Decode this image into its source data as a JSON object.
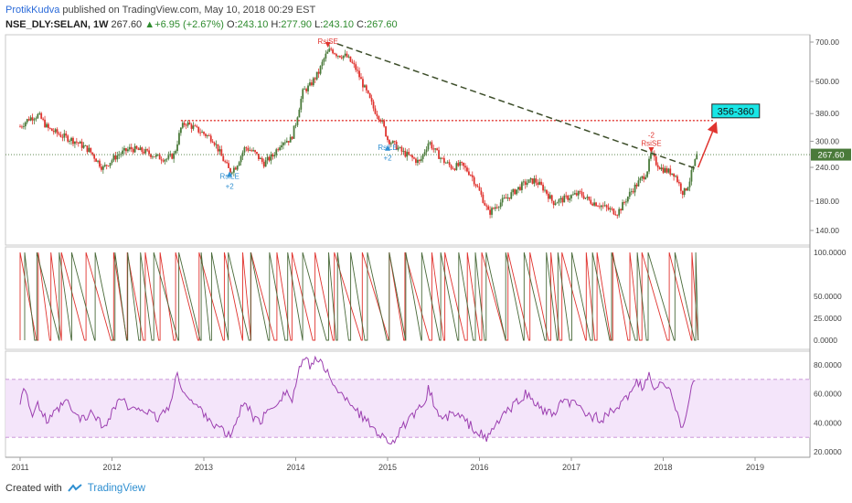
{
  "header": {
    "author": "ProtikKudva",
    "published": "published on TradingView.com, May 10, 2018 00:29 EST",
    "symbol": "NSE_DLY:SELAN, 1W",
    "price": "267.60",
    "change": "+6.95 (+2.67%)",
    "o_label": "O:",
    "o": "243.10",
    "h_label": "H:",
    "h": "277.90",
    "l_label": "L:",
    "l": "243.10",
    "c_label": "C:",
    "c": "267.60"
  },
  "footer": {
    "created": "Created with",
    "brand": "TradingView"
  },
  "colors": {
    "up": "#4a7a3a",
    "down": "#e0342f",
    "trend": "#3d4e2a",
    "level": "#e0342f",
    "rsi": "#9c3fb0",
    "rsi_band": "#f0ddf8",
    "target": "#18e6e6"
  },
  "chart_data": [
    {
      "type": "candlestick",
      "panel": "price",
      "scale": "log",
      "x_ticks": [
        "2011",
        "2012",
        "2013",
        "2014",
        "2015",
        "2016",
        "2017",
        "2018",
        "2019"
      ],
      "y_ticks": [
        "700.00",
        "500.00",
        "380.00",
        "300.00",
        "240.00",
        "180.00",
        "140.00"
      ],
      "last_price_label": "267.60",
      "target_label": "356-360",
      "annotations": [
        {
          "text": "RsiSE",
          "year": 2014.35,
          "price": 690
        },
        {
          "text": "RsiLE",
          "year": 2013.28,
          "price": 218
        },
        {
          "text": "+2",
          "year": 2013.28,
          "price": 200
        },
        {
          "text": "RsiLE",
          "year": 2015.0,
          "price": 278
        },
        {
          "text": "+2",
          "year": 2015.0,
          "price": 255
        },
        {
          "text": "-2",
          "year": 2017.87,
          "price": 310
        },
        {
          "text": "RsiSE",
          "year": 2017.87,
          "price": 288
        }
      ],
      "resistance_level": 358,
      "trendline": {
        "start": {
          "year": 2014.45,
          "price": 690
        },
        "end": {
          "year": 2018.38,
          "price": 236
        }
      },
      "projection": {
        "start": {
          "year": 2018.38,
          "price": 240
        },
        "end": {
          "year": 2018.57,
          "price": 358
        }
      },
      "close_path": [
        [
          2011.0,
          340
        ],
        [
          2011.1,
          365
        ],
        [
          2011.2,
          375
        ],
        [
          2011.3,
          335
        ],
        [
          2011.45,
          315
        ],
        [
          2011.6,
          300
        ],
        [
          2011.75,
          278
        ],
        [
          2011.9,
          238
        ],
        [
          2012.05,
          265
        ],
        [
          2012.2,
          282
        ],
        [
          2012.35,
          275
        ],
        [
          2012.5,
          262
        ],
        [
          2012.6,
          258
        ],
        [
          2012.68,
          268
        ],
        [
          2012.75,
          335
        ],
        [
          2012.8,
          352
        ],
        [
          2012.9,
          335
        ],
        [
          2013.0,
          320
        ],
        [
          2013.1,
          305
        ],
        [
          2013.2,
          260
        ],
        [
          2013.28,
          232
        ],
        [
          2013.35,
          242
        ],
        [
          2013.45,
          285
        ],
        [
          2013.55,
          272
        ],
        [
          2013.65,
          248
        ],
        [
          2013.75,
          265
        ],
        [
          2013.85,
          300
        ],
        [
          2013.95,
          305
        ],
        [
          2014.0,
          350
        ],
        [
          2014.08,
          460
        ],
        [
          2014.15,
          480
        ],
        [
          2014.25,
          540
        ],
        [
          2014.32,
          620
        ],
        [
          2014.38,
          660
        ],
        [
          2014.45,
          630
        ],
        [
          2014.55,
          620
        ],
        [
          2014.65,
          560
        ],
        [
          2014.75,
          470
        ],
        [
          2014.85,
          395
        ],
        [
          2014.93,
          360
        ],
        [
          2015.0,
          305
        ],
        [
          2015.08,
          290
        ],
        [
          2015.15,
          275
        ],
        [
          2015.25,
          262
        ],
        [
          2015.35,
          250
        ],
        [
          2015.45,
          300
        ],
        [
          2015.5,
          280
        ],
        [
          2015.6,
          255
        ],
        [
          2015.7,
          240
        ],
        [
          2015.8,
          245
        ],
        [
          2015.9,
          228
        ],
        [
          2016.0,
          195
        ],
        [
          2016.1,
          162
        ],
        [
          2016.2,
          175
        ],
        [
          2016.3,
          185
        ],
        [
          2016.4,
          198
        ],
        [
          2016.5,
          210
        ],
        [
          2016.6,
          215
        ],
        [
          2016.7,
          200
        ],
        [
          2016.8,
          178
        ],
        [
          2016.9,
          182
        ],
        [
          2017.0,
          188
        ],
        [
          2017.1,
          192
        ],
        [
          2017.2,
          180
        ],
        [
          2017.3,
          175
        ],
        [
          2017.4,
          168
        ],
        [
          2017.5,
          163
        ],
        [
          2017.55,
          172
        ],
        [
          2017.65,
          195
        ],
        [
          2017.75,
          215
        ],
        [
          2017.82,
          230
        ],
        [
          2017.87,
          270
        ],
        [
          2017.92,
          250
        ],
        [
          2017.98,
          238
        ],
        [
          2018.05,
          232
        ],
        [
          2018.12,
          228
        ],
        [
          2018.18,
          205
        ],
        [
          2018.22,
          192
        ],
        [
          2018.28,
          210
        ],
        [
          2018.33,
          242
        ],
        [
          2018.37,
          268
        ]
      ]
    },
    {
      "type": "line",
      "panel": "oscillator",
      "y_ticks": [
        "100.0000",
        "50.0000",
        "25.0000",
        "0.0000"
      ],
      "series": [
        {
          "color": "#e0342f",
          "pattern": "sawtooth"
        },
        {
          "color": "#4a6a3a",
          "pattern": "sawtooth"
        }
      ]
    },
    {
      "type": "line",
      "panel": "rsi",
      "y_ticks": [
        "80.0000",
        "60.0000",
        "40.0000",
        "20.0000"
      ],
      "band": [
        30,
        70
      ],
      "path": [
        [
          2011.0,
          55
        ],
        [
          2011.05,
          68
        ],
        [
          2011.12,
          45
        ],
        [
          2011.2,
          52
        ],
        [
          2011.3,
          40
        ],
        [
          2011.4,
          48
        ],
        [
          2011.5,
          55
        ],
        [
          2011.6,
          45
        ],
        [
          2011.7,
          42
        ],
        [
          2011.8,
          48
        ],
        [
          2011.9,
          36
        ],
        [
          2012.0,
          48
        ],
        [
          2012.1,
          58
        ],
        [
          2012.2,
          47
        ],
        [
          2012.3,
          52
        ],
        [
          2012.4,
          46
        ],
        [
          2012.5,
          43
        ],
        [
          2012.6,
          50
        ],
        [
          2012.65,
          55
        ],
        [
          2012.7,
          73
        ],
        [
          2012.78,
          63
        ],
        [
          2012.85,
          55
        ],
        [
          2012.95,
          50
        ],
        [
          2013.05,
          44
        ],
        [
          2013.12,
          38
        ],
        [
          2013.2,
          35
        ],
        [
          2013.28,
          30
        ],
        [
          2013.35,
          40
        ],
        [
          2013.45,
          57
        ],
        [
          2013.52,
          45
        ],
        [
          2013.6,
          40
        ],
        [
          2013.7,
          48
        ],
        [
          2013.8,
          55
        ],
        [
          2013.9,
          62
        ],
        [
          2013.96,
          55
        ],
        [
          2014.02,
          72
        ],
        [
          2014.08,
          84
        ],
        [
          2014.15,
          80
        ],
        [
          2014.22,
          85
        ],
        [
          2014.3,
          78
        ],
        [
          2014.38,
          73
        ],
        [
          2014.45,
          60
        ],
        [
          2014.55,
          58
        ],
        [
          2014.65,
          50
        ],
        [
          2014.75,
          42
        ],
        [
          2014.85,
          37
        ],
        [
          2014.95,
          30
        ],
        [
          2015.05,
          27
        ],
        [
          2015.12,
          32
        ],
        [
          2015.2,
          40
        ],
        [
          2015.3,
          45
        ],
        [
          2015.38,
          52
        ],
        [
          2015.45,
          64
        ],
        [
          2015.52,
          50
        ],
        [
          2015.6,
          42
        ],
        [
          2015.7,
          46
        ],
        [
          2015.8,
          44
        ],
        [
          2015.9,
          38
        ],
        [
          2016.0,
          33
        ],
        [
          2016.08,
          28
        ],
        [
          2016.15,
          36
        ],
        [
          2016.25,
          45
        ],
        [
          2016.35,
          50
        ],
        [
          2016.45,
          57
        ],
        [
          2016.5,
          60
        ],
        [
          2016.6,
          54
        ],
        [
          2016.7,
          48
        ],
        [
          2016.8,
          45
        ],
        [
          2016.88,
          52
        ],
        [
          2016.95,
          55
        ],
        [
          2017.05,
          52
        ],
        [
          2017.15,
          47
        ],
        [
          2017.25,
          44
        ],
        [
          2017.35,
          43
        ],
        [
          2017.45,
          48
        ],
        [
          2017.55,
          52
        ],
        [
          2017.62,
          60
        ],
        [
          2017.7,
          68
        ],
        [
          2017.78,
          64
        ],
        [
          2017.85,
          73
        ],
        [
          2017.92,
          62
        ],
        [
          2018.0,
          68
        ],
        [
          2018.08,
          60
        ],
        [
          2018.15,
          50
        ],
        [
          2018.2,
          38
        ],
        [
          2018.25,
          45
        ],
        [
          2018.3,
          62
        ],
        [
          2018.35,
          70
        ]
      ]
    }
  ]
}
